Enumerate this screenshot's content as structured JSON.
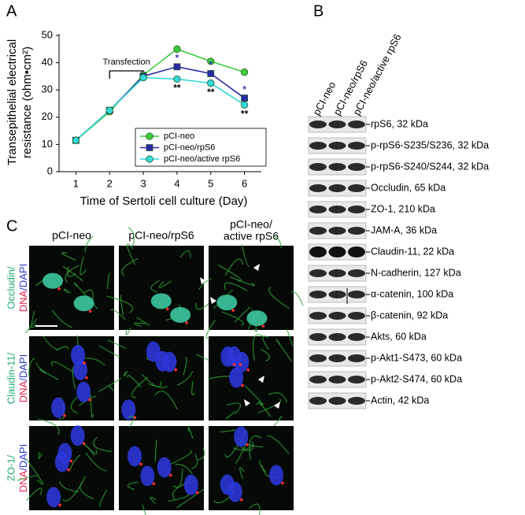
{
  "chart_data": {
    "type": "line",
    "panel": "A",
    "ylabel": [
      "Transepithelial electrical",
      "resistance (ohm•cm²)"
    ],
    "xlabel": "Time of Sertoli cell culture (Day)",
    "x": [
      1,
      2,
      3,
      4,
      5,
      6
    ],
    "xlim": [
      0.5,
      6.5
    ],
    "xticks": [
      1,
      2,
      3,
      4,
      5,
      6
    ],
    "ylim": [
      0,
      50
    ],
    "yticks": [
      0,
      10,
      20,
      30,
      40,
      50
    ],
    "legend": "lower right",
    "series": [
      {
        "name": "pCI-neo",
        "color": "#3ccc3c",
        "marker": "circle",
        "values": [
          11.5,
          22,
          35.5,
          45,
          40.5,
          36.5
        ]
      },
      {
        "name": "pCI-neo/rpS6",
        "color": "#2a2aa8",
        "marker": "square",
        "values": [
          11.5,
          22.5,
          35,
          38.5,
          36,
          27
        ]
      },
      {
        "name": "pCI-neo/active rpS6",
        "color": "#33d8d8",
        "marker": "circle",
        "values": [
          11.5,
          22.5,
          34.5,
          34,
          32.5,
          24.5
        ]
      }
    ],
    "transfection": {
      "text": "Transfection",
      "x": [
        2,
        3
      ]
    },
    "annotations": [
      {
        "text": "*",
        "x": 4,
        "y": 41.5,
        "color": "#3a3ab0"
      },
      {
        "text": "**",
        "x": 4,
        "y": 30.5,
        "color": "#000000"
      },
      {
        "text": "*",
        "x": 5,
        "y": 39,
        "color": "#3a3ab0"
      },
      {
        "text": "**",
        "x": 5,
        "y": 29,
        "color": "#000000"
      },
      {
        "text": "*",
        "x": 6,
        "y": 30,
        "color": "#3a3ab0"
      },
      {
        "text": "**",
        "x": 6,
        "y": 21,
        "color": "#000000"
      }
    ]
  },
  "blot": {
    "panel": "B",
    "lanes": [
      "pCI-neo",
      "pCI-neo/rpS6",
      "pCI-neo/active rpS6"
    ],
    "bands": [
      "rpS6, 32 kDa",
      "p-rpS6-S235/S236, 32 kDa",
      "p-rpS6-S240/S244, 32 kDa",
      "Occludin, 65 kDa",
      "ZO-1, 210 kDa",
      "JAM-A, 36 kDa",
      "Claudin-11, 22 kDa",
      "N-cadherin, 127 kDa",
      "α-catenin, 100 kDa",
      "β-catenin, 92 kDa",
      "Akts, 60 kDa",
      "p-Akt1-S473, 60 kDa",
      "p-Akt2-S474, 60 kDa",
      "Actin, 42 kDa"
    ]
  },
  "images": {
    "panel": "C",
    "columns": [
      [
        "pCI-neo"
      ],
      [
        "pCI-neo/rpS6"
      ],
      [
        "pCI-neo/",
        "active rpS6"
      ]
    ],
    "rows": [
      {
        "line1": "Occludin/",
        "line2": [
          "DNA",
          "/DAPI"
        ]
      },
      {
        "line1": "Claudin-11/",
        "line2": [
          "DNA",
          "/DAPI"
        ]
      },
      {
        "line1": "ZO-1/",
        "line2": [
          "DNA",
          "/DAPI"
        ]
      }
    ]
  }
}
